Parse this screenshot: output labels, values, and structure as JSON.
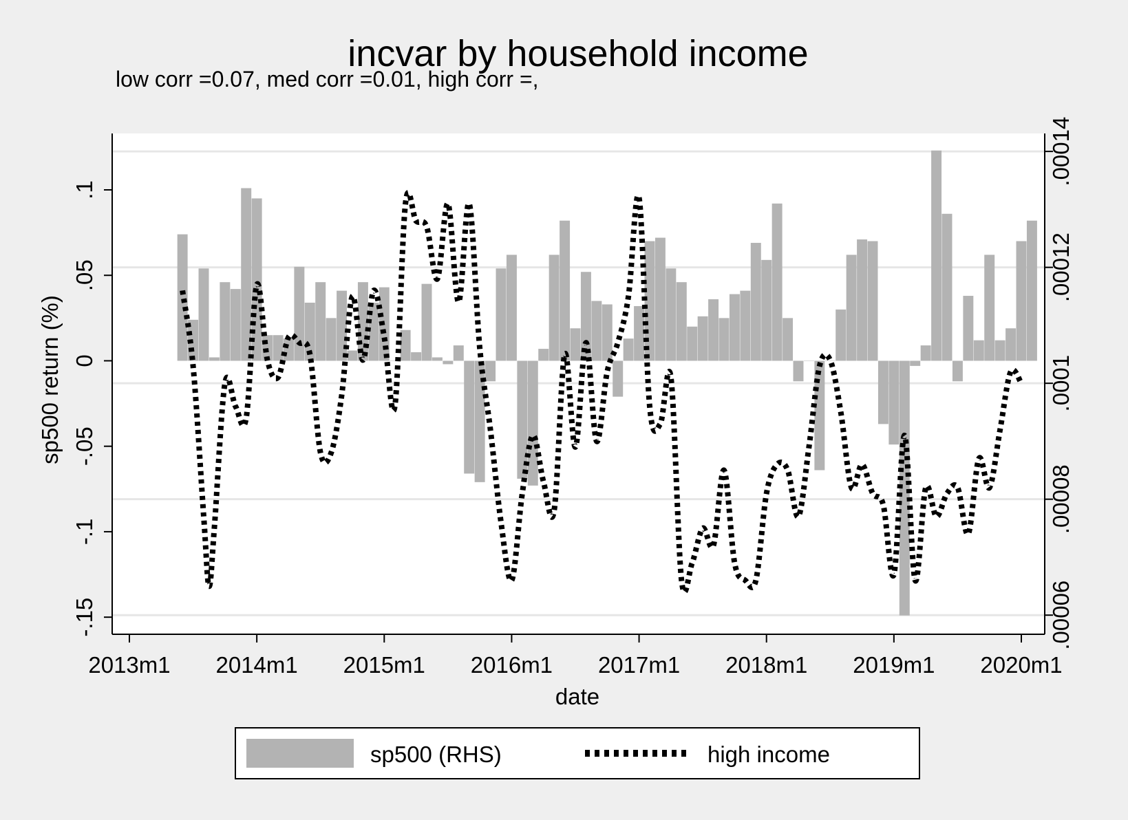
{
  "chart_data": {
    "type": "bar+line",
    "title": "incvar by household income",
    "subtitle": "low corr =0.07, med corr =0.01, high corr =,",
    "xlabel": "date",
    "ylabel_left": "sp500 return (%)",
    "ylabel_right": "",
    "x_ticks": [
      "2013m1",
      "2014m1",
      "2015m1",
      "2016m1",
      "2017m1",
      "2018m1",
      "2019m1",
      "2020m1"
    ],
    "x_tick_months": [
      0,
      12,
      24,
      36,
      48,
      60,
      72,
      84
    ],
    "x_range_months": [
      0,
      84
    ],
    "y_left_ticks": [
      "-.15",
      "-.1",
      "-.05",
      "0",
      ".05",
      ".1"
    ],
    "y_left_tick_values": [
      -0.15,
      -0.1,
      -0.05,
      0,
      0.05,
      0.1
    ],
    "y_left_range": [
      -0.16,
      0.133
    ],
    "y_right_ticks": [
      ".00006",
      ".00008",
      ".0001",
      ".00012",
      ".00014"
    ],
    "y_right_tick_values": [
      6e-05,
      8e-05,
      0.0001,
      0.00012,
      0.00014
    ],
    "y_right_range": [
      5.67e-05,
      0.0001431
    ],
    "grid": true,
    "legend_position": "bottom",
    "x_month_offset_note": "month index where 0 = 2013m1",
    "series": [
      {
        "name": "sp500 (RHS)",
        "kind": "bar",
        "color": "#b3b3b3",
        "start_month": 5,
        "values": [
          0.074,
          0.024,
          0.054,
          0.002,
          0.046,
          0.042,
          0.101,
          0.095,
          0.015,
          0.015,
          0.013,
          0.055,
          0.034,
          0.046,
          0.025,
          0.041,
          0.006,
          0.046,
          0.034,
          0.043,
          0.0,
          0.018,
          0.005,
          0.045,
          0.002,
          -0.002,
          0.009,
          -0.066,
          -0.071,
          -0.012,
          0.054,
          0.062,
          -0.069,
          -0.073,
          0.007,
          0.062,
          0.082,
          0.019,
          0.052,
          0.035,
          0.033,
          -0.021,
          0.013,
          0.032,
          0.07,
          0.072,
          0.054,
          0.046,
          0.02,
          0.026,
          0.036,
          0.025,
          0.039,
          0.041,
          0.069,
          0.059,
          0.092,
          0.025,
          -0.012,
          0.0,
          -0.064,
          0.0,
          0.03,
          0.062,
          0.071,
          0.07,
          -0.037,
          -0.049,
          -0.149,
          -0.003,
          0.009,
          0.123,
          0.086,
          -0.012,
          0.038,
          0.012,
          0.062,
          0.012,
          0.019,
          0.07,
          0.082
        ]
      },
      {
        "name": "high income",
        "kind": "line",
        "style": "dotted",
        "color": "#000000",
        "points": [
          [
            5,
            0.000116
          ],
          [
            6,
            0.000103
          ],
          [
            7,
            7.7e-05
          ],
          [
            7.5,
            6.5e-05
          ],
          [
            8,
            7.5e-05
          ],
          [
            9,
            0.0001
          ],
          [
            10,
            9.6e-05
          ],
          [
            11,
            9.4e-05
          ],
          [
            12,
            0.000117
          ],
          [
            13,
            0.000104
          ],
          [
            14,
            0.000101
          ],
          [
            15,
            0.000108
          ],
          [
            16,
            0.000107
          ],
          [
            17,
            0.000105
          ],
          [
            18,
            8.8e-05
          ],
          [
            19,
            8.8e-05
          ],
          [
            20,
            9.8e-05
          ],
          [
            21,
            0.000115
          ],
          [
            22,
            0.000104
          ],
          [
            23,
            0.000116
          ],
          [
            24,
            0.000108
          ],
          [
            25,
            9.6e-05
          ],
          [
            26,
            0.000131
          ],
          [
            27,
            0.000128
          ],
          [
            28,
            0.000127
          ],
          [
            29,
            0.000118
          ],
          [
            30,
            0.000131
          ],
          [
            31,
            0.000114
          ],
          [
            32,
            0.000131
          ],
          [
            33,
            0.000106
          ],
          [
            34,
            9.2e-05
          ],
          [
            35,
            7.6e-05
          ],
          [
            36,
            6.6e-05
          ],
          [
            37,
            8.1e-05
          ],
          [
            38,
            9.1e-05
          ],
          [
            39,
            8.3e-05
          ],
          [
            40,
            7.8e-05
          ],
          [
            41,
            0.000105
          ],
          [
            42,
            8.9e-05
          ],
          [
            43,
            0.000107
          ],
          [
            44,
            9e-05
          ],
          [
            45,
            0.000102
          ],
          [
            46,
            0.000107
          ],
          [
            47,
            0.000115
          ],
          [
            48,
            0.000132
          ],
          [
            49,
            9.6e-05
          ],
          [
            50,
            9.3e-05
          ],
          [
            51,
            0.000101
          ],
          [
            52,
            6.6e-05
          ],
          [
            53,
            6.9e-05
          ],
          [
            54,
            7.5e-05
          ],
          [
            55,
            7.2e-05
          ],
          [
            56,
            8.5e-05
          ],
          [
            57,
            6.9e-05
          ],
          [
            58,
            6.6e-05
          ],
          [
            59,
            6.6e-05
          ],
          [
            60,
            8.1e-05
          ],
          [
            61,
            8.6e-05
          ],
          [
            62,
            8.5e-05
          ],
          [
            63,
            7.7e-05
          ],
          [
            64,
            8.9e-05
          ],
          [
            65,
            0.000103
          ],
          [
            66,
            0.000104
          ],
          [
            67,
            9.5e-05
          ],
          [
            68,
            8.2e-05
          ],
          [
            69,
            8.6e-05
          ],
          [
            70,
            8.1e-05
          ],
          [
            71,
            7.9e-05
          ],
          [
            72,
            6.7e-05
          ],
          [
            73,
            9.1e-05
          ],
          [
            74,
            6.6e-05
          ],
          [
            75,
            8.2e-05
          ],
          [
            76,
            7.7e-05
          ],
          [
            77,
            8.1e-05
          ],
          [
            78,
            8.2e-05
          ],
          [
            79,
            7.4e-05
          ],
          [
            80,
            8.7e-05
          ],
          [
            81,
            8.2e-05
          ],
          [
            82,
            9.2e-05
          ],
          [
            83,
            0.000102
          ],
          [
            84,
            0.0001
          ]
        ]
      }
    ]
  }
}
